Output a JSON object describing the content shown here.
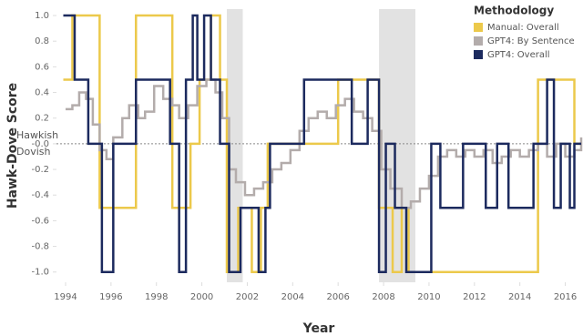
{
  "chart_data": {
    "type": "step",
    "x_label": "Year",
    "y_label": "Hawk-Dove Score",
    "annotations": [
      "Hawkish",
      "Dovish"
    ],
    "legend_title": "Methodology",
    "legend_position": "top-right",
    "xlim": [
      1993.6,
      2016.7
    ],
    "ylim": [
      -1.08,
      1.05
    ],
    "xticks": [
      1994,
      1996,
      1998,
      2000,
      2002,
      2004,
      2006,
      2008,
      2010,
      2012,
      2014,
      2016
    ],
    "yticks": [
      {
        "value": 1.0,
        "label": "1.0"
      },
      {
        "value": 0.8,
        "label": "0.8"
      },
      {
        "value": 0.6,
        "label": "0.6"
      },
      {
        "value": 0.4,
        "label": "0.4"
      },
      {
        "value": 0.2,
        "label": "0.2"
      },
      {
        "value": 0,
        "label": "-0.0"
      },
      {
        "value": -0.2,
        "label": "-0.2"
      },
      {
        "value": -0.4,
        "label": "-0.4"
      },
      {
        "value": -0.6,
        "label": "-0.6"
      },
      {
        "value": -0.8,
        "label": "-0.8"
      },
      {
        "value": -1.0,
        "label": "-1.0"
      }
    ],
    "grid": false,
    "zero_line": true,
    "shaded_regions": [
      [
        2001.1,
        2001.8
      ],
      [
        2007.8,
        2009.4
      ]
    ],
    "shade_color": "#e2e2e2",
    "series": [
      {
        "name": "Manual: Overall",
        "color": "#ecc94b",
        "x": [
          1993.9,
          1994.3,
          1995.5,
          1997.1,
          1998.7,
          1999.5,
          1999.9,
          2000.4,
          2000.8,
          2001.1,
          2001.6,
          2002.2,
          2002.6,
          2002.9,
          2006.0,
          2007.8,
          2008.4,
          2008.8,
          2009.1,
          2014.8,
          2016.4,
          2016.7
        ],
        "values": [
          0.5,
          1.0,
          -0.5,
          1.0,
          -0.5,
          0.0,
          0.5,
          1.0,
          0.5,
          -1.0,
          -0.5,
          -1.0,
          -0.5,
          0.0,
          0.5,
          -0.5,
          -1.0,
          -0.5,
          -1.0,
          0.5,
          0.0,
          0.0
        ]
      },
      {
        "name": "GPT4: By Sentence",
        "color": "#b3acab",
        "x": [
          1994.0,
          1994.3,
          1994.6,
          1994.9,
          1995.2,
          1995.5,
          1995.8,
          1996.1,
          1996.5,
          1996.8,
          1997.2,
          1997.5,
          1997.9,
          1998.3,
          1998.7,
          1999.0,
          1999.4,
          1999.8,
          2000.2,
          2000.6,
          2000.9,
          2001.2,
          2001.5,
          2001.9,
          2002.3,
          2002.7,
          2003.1,
          2003.5,
          2003.9,
          2004.3,
          2004.7,
          2005.1,
          2005.5,
          2005.9,
          2006.3,
          2006.7,
          2007.1,
          2007.5,
          2007.9,
          2008.3,
          2008.8,
          2009.2,
          2009.6,
          2010.0,
          2010.4,
          2010.8,
          2011.2,
          2011.6,
          2012.0,
          2012.4,
          2012.8,
          2013.2,
          2013.6,
          2014.0,
          2014.4,
          2014.8,
          2015.2,
          2015.6,
          2016.0,
          2016.4,
          2016.7
        ],
        "values": [
          0.27,
          0.3,
          0.4,
          0.35,
          0.15,
          -0.05,
          -0.12,
          0.05,
          0.2,
          0.3,
          0.2,
          0.25,
          0.45,
          0.35,
          0.3,
          0.2,
          0.3,
          0.45,
          0.5,
          0.4,
          0.2,
          -0.2,
          -0.3,
          -0.4,
          -0.35,
          -0.3,
          -0.2,
          -0.15,
          -0.05,
          0.1,
          0.2,
          0.25,
          0.2,
          0.3,
          0.35,
          0.25,
          0.2,
          0.1,
          -0.2,
          -0.35,
          -0.5,
          -0.45,
          -0.35,
          -0.25,
          -0.1,
          -0.05,
          -0.1,
          -0.05,
          -0.1,
          -0.05,
          -0.15,
          -0.1,
          -0.05,
          -0.1,
          -0.05,
          0.0,
          -0.1,
          0.0,
          -0.1,
          -0.05,
          0.05
        ]
      },
      {
        "name": "GPT4: Overall",
        "color": "#1c2a5e",
        "x": [
          1993.9,
          1994.4,
          1995.0,
          1995.6,
          1996.1,
          1997.1,
          1998.6,
          1999.0,
          1999.3,
          1999.6,
          1999.8,
          2000.1,
          2000.4,
          2000.8,
          2001.2,
          2001.7,
          2002.5,
          2002.8,
          2003.0,
          2004.5,
          2006.6,
          2007.3,
          2007.8,
          2008.1,
          2008.5,
          2009.0,
          2010.1,
          2010.5,
          2011.0,
          2011.5,
          2012.5,
          2013.0,
          2013.5,
          2014.6,
          2015.2,
          2015.5,
          2015.8,
          2016.2,
          2016.4,
          2016.7
        ],
        "values": [
          1.0,
          0.5,
          0.0,
          -1.0,
          0.0,
          0.5,
          0.0,
          -1.0,
          0.5,
          1.0,
          0.5,
          1.0,
          0.5,
          0.0,
          -1.0,
          -0.5,
          -1.0,
          -0.5,
          0.0,
          0.5,
          0.0,
          0.5,
          -1.0,
          0.0,
          -0.5,
          -1.0,
          0.0,
          -0.5,
          -0.5,
          0.0,
          -0.5,
          0.0,
          -0.5,
          0.0,
          0.5,
          -0.5,
          0.0,
          -0.5,
          0.0,
          0.0
        ]
      }
    ]
  }
}
